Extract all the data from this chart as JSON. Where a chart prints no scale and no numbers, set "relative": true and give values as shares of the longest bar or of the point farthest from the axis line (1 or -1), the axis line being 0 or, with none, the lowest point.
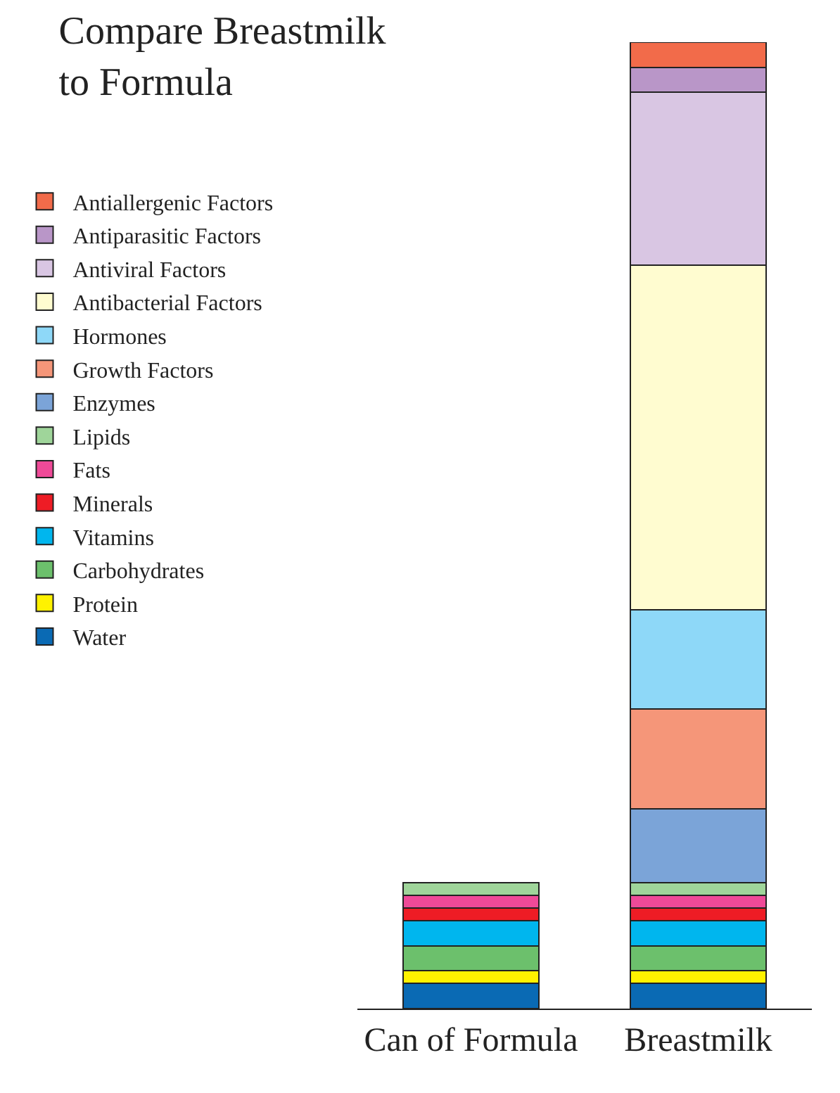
{
  "chart_data": {
    "type": "bar",
    "title": "Compare Breastmilk\nto Formula",
    "categories": [
      "Can of Formula",
      "Breastmilk"
    ],
    "stacked": true,
    "relative": true,
    "legend": "top left",
    "series": [
      {
        "name": "Water",
        "color": "#0a6ab4",
        "values": [
          0.026,
          0.026
        ]
      },
      {
        "name": "Protein",
        "color": "#fff200",
        "values": [
          0.013,
          0.013
        ]
      },
      {
        "name": "Carbohydrates",
        "color": "#6cc06c",
        "values": [
          0.026,
          0.026
        ]
      },
      {
        "name": "Vitamins",
        "color": "#00b6ee",
        "values": [
          0.026,
          0.026
        ]
      },
      {
        "name": "Minerals",
        "color": "#ee1c25",
        "values": [
          0.013,
          0.013
        ]
      },
      {
        "name": "Fats",
        "color": "#ef4a98",
        "values": [
          0.013,
          0.013
        ]
      },
      {
        "name": "Lipids",
        "color": "#9fd59a",
        "values": [
          0.013,
          0.013
        ]
      },
      {
        "name": "Enzymes",
        "color": "#7ba4d8",
        "values": [
          null,
          0.077
        ]
      },
      {
        "name": "Growth Factors",
        "color": "#f59679",
        "values": [
          null,
          0.103
        ]
      },
      {
        "name": "Hormones",
        "color": "#8ed8f8",
        "values": [
          null,
          0.103
        ]
      },
      {
        "name": "Antibacterial Factors",
        "color": "#fffcd0",
        "values": [
          null,
          0.356
        ]
      },
      {
        "name": "Antiviral Factors",
        "color": "#d9c6e3",
        "values": [
          null,
          0.179
        ]
      },
      {
        "name": "Antiparasitic Factors",
        "color": "#b996c8",
        "values": [
          null,
          0.026
        ]
      },
      {
        "name": "Antiallergenic Factors",
        "color": "#f26b4a",
        "values": [
          null,
          0.026
        ]
      }
    ]
  }
}
